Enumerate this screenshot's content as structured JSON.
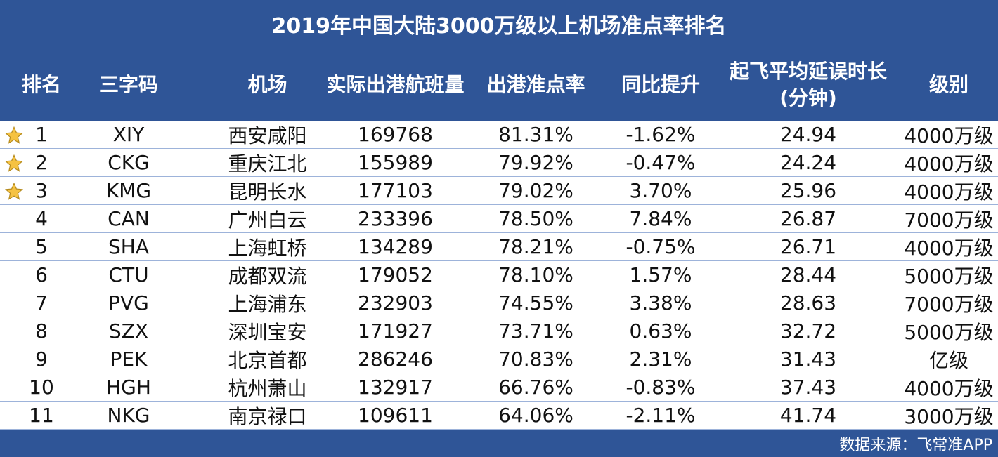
{
  "title": "2019年中国大陆3000万级以上机场准点率排名",
  "source": "数据来源：飞常准APP",
  "colors": {
    "header_bg": "#2f5597",
    "row_line": "#9db3da",
    "star_fill": "#f5c242",
    "star_stroke": "#b58a1c"
  },
  "chart_data": {
    "type": "table",
    "columns": [
      "排名",
      "三字码",
      "机场",
      "实际出港航班量",
      "出港准点率",
      "同比提升",
      "起飞平均延误时长\n(分钟)",
      "级别"
    ],
    "rows": [
      {
        "rank": "1",
        "code": "XIY",
        "airport": "西安咸阳",
        "flights": "169768",
        "ontime": "81.31%",
        "yoy": "-1.62%",
        "delay": "24.94",
        "level": "4000万级",
        "star": true
      },
      {
        "rank": "2",
        "code": "CKG",
        "airport": "重庆江北",
        "flights": "155989",
        "ontime": "79.92%",
        "yoy": "-0.47%",
        "delay": "24.24",
        "level": "4000万级",
        "star": true
      },
      {
        "rank": "3",
        "code": "KMG",
        "airport": "昆明长水",
        "flights": "177103",
        "ontime": "79.02%",
        "yoy": "3.70%",
        "delay": "25.96",
        "level": "4000万级",
        "star": true
      },
      {
        "rank": "4",
        "code": "CAN",
        "airport": "广州白云",
        "flights": "233396",
        "ontime": "78.50%",
        "yoy": "7.84%",
        "delay": "26.87",
        "level": "7000万级",
        "star": false
      },
      {
        "rank": "5",
        "code": "SHA",
        "airport": "上海虹桥",
        "flights": "134289",
        "ontime": "78.21%",
        "yoy": "-0.75%",
        "delay": "26.71",
        "level": "4000万级",
        "star": false
      },
      {
        "rank": "6",
        "code": "CTU",
        "airport": "成都双流",
        "flights": "179052",
        "ontime": "78.10%",
        "yoy": "1.57%",
        "delay": "28.44",
        "level": "5000万级",
        "star": false
      },
      {
        "rank": "7",
        "code": "PVG",
        "airport": "上海浦东",
        "flights": "232903",
        "ontime": "74.55%",
        "yoy": "3.38%",
        "delay": "28.63",
        "level": "7000万级",
        "star": false
      },
      {
        "rank": "8",
        "code": "SZX",
        "airport": "深圳宝安",
        "flights": "171927",
        "ontime": "73.71%",
        "yoy": "0.63%",
        "delay": "32.72",
        "level": "5000万级",
        "star": false
      },
      {
        "rank": "9",
        "code": "PEK",
        "airport": "北京首都",
        "flights": "286246",
        "ontime": "70.83%",
        "yoy": "2.31%",
        "delay": "31.43",
        "level": "亿级",
        "star": false
      },
      {
        "rank": "10",
        "code": "HGH",
        "airport": "杭州萧山",
        "flights": "132917",
        "ontime": "66.76%",
        "yoy": "-0.83%",
        "delay": "37.43",
        "level": "4000万级",
        "star": false
      },
      {
        "rank": "11",
        "code": "NKG",
        "airport": "南京禄口",
        "flights": "109611",
        "ontime": "64.06%",
        "yoy": "-2.11%",
        "delay": "41.74",
        "level": "3000万级",
        "star": false
      }
    ]
  }
}
